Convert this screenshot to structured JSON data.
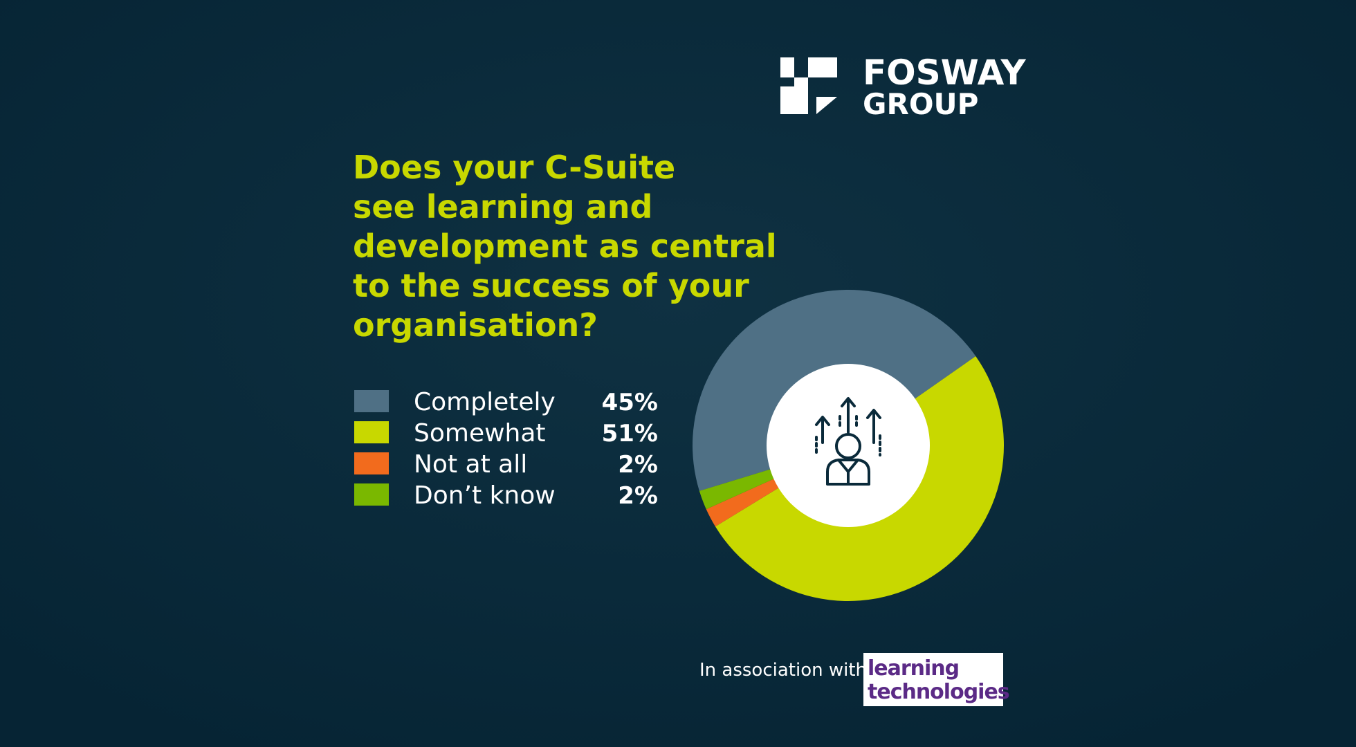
{
  "header": {
    "logo_top": "FOSWAY",
    "logo_bottom": "GROUP"
  },
  "chart_data": {
    "type": "pie",
    "donut": true,
    "title": [
      "Does your C-Suite",
      "see learning and",
      "development as central",
      "to the success of your",
      "organisation?"
    ],
    "categories": [
      "Completely",
      "Somewhat",
      "Not at all",
      "Don’t know"
    ],
    "values": [
      45,
      51,
      2,
      2
    ],
    "value_labels": [
      "45%",
      "51%",
      "2%",
      "2%"
    ],
    "colors": [
      "#4f7085",
      "#c8d800",
      "#f26b1d",
      "#7ab800"
    ]
  },
  "footer": {
    "text": "In association with",
    "partner_line1": "learning",
    "partner_line2": "technologies"
  }
}
